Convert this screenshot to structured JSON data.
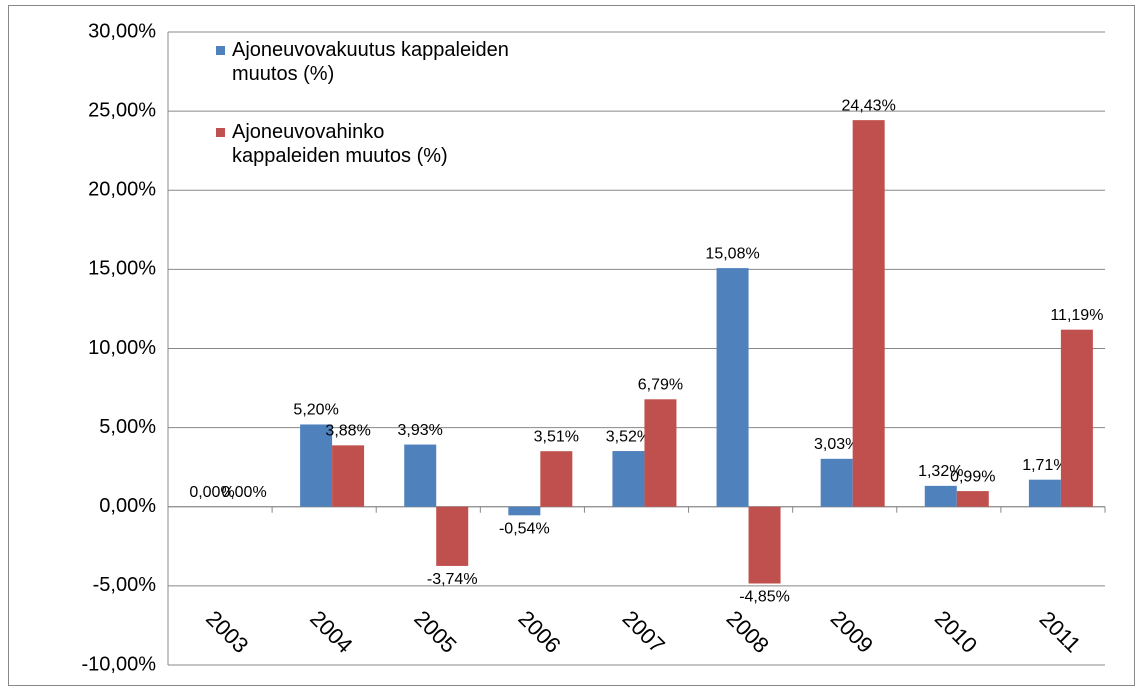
{
  "chart_data": {
    "type": "bar",
    "categories": [
      "2003",
      "2004",
      "2005",
      "2006",
      "2007",
      "2008",
      "2009",
      "2010",
      "2011"
    ],
    "series": [
      {
        "name": "Ajoneuvovakuutus kappaleiden muutos (%)",
        "color": "#4f81bd",
        "values": [
          0.0,
          5.2,
          3.93,
          -0.54,
          3.52,
          15.08,
          3.03,
          1.32,
          1.71
        ],
        "value_labels": [
          "0,00%",
          "5,20%",
          "3,93%",
          "-0,54%",
          "3,52%",
          "15,08%",
          "3,03%",
          "1,32%",
          "1,71%"
        ]
      },
      {
        "name": "Ajoneuvovahinko kappaleiden muutos (%)",
        "color": "#c0504d",
        "values": [
          0.0,
          3.88,
          -3.74,
          3.51,
          6.79,
          -4.85,
          24.43,
          0.99,
          11.19
        ],
        "value_labels": [
          "0,00%",
          "3,88%",
          "-3,74%",
          "3,51%",
          "6,79%",
          "-4,85%",
          "24,43%",
          "0,99%",
          "11,19%"
        ]
      }
    ],
    "ylim": [
      -10,
      30
    ],
    "yticks": [
      {
        "value": -10,
        "label": "-10,00%"
      },
      {
        "value": -5,
        "label": "-5,00%"
      },
      {
        "value": 0,
        "label": "0,00%"
      },
      {
        "value": 5,
        "label": "5,00%"
      },
      {
        "value": 10,
        "label": "10,00%"
      },
      {
        "value": 15,
        "label": "15,00%"
      },
      {
        "value": 20,
        "label": "20,00%"
      },
      {
        "value": 25,
        "label": "25,00%"
      },
      {
        "value": 30,
        "label": "30,00%"
      }
    ],
    "grid": true,
    "legend": "top-left"
  }
}
